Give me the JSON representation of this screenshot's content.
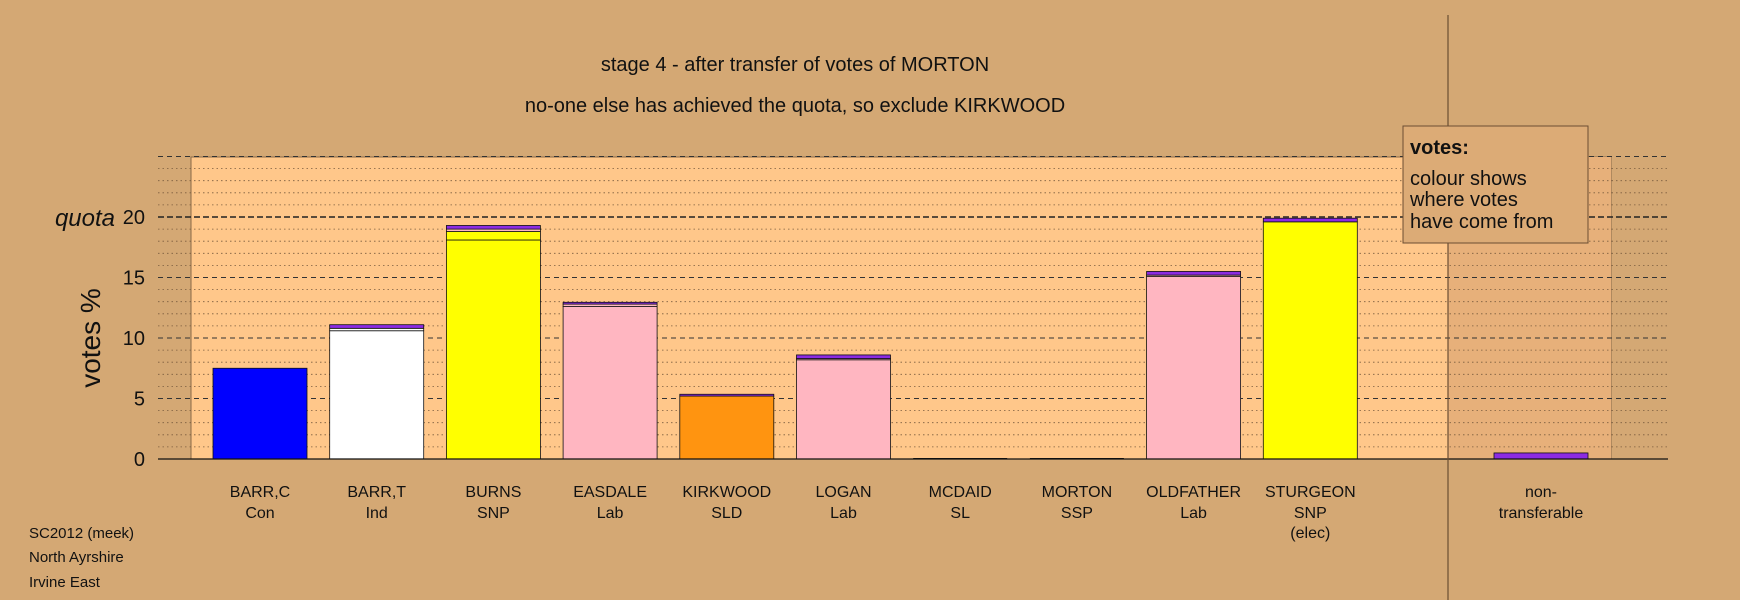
{
  "chart_data": {
    "type": "bar",
    "title": "stage 4 - after transfer of votes of MORTON",
    "subtitle": "no-one else has achieved the quota, so exclude KIRKWOOD",
    "ylabel": "votes %",
    "ylim": [
      0,
      25
    ],
    "yticks": [
      0,
      5,
      10,
      15,
      20
    ],
    "quota": 20,
    "quota_label": "quota",
    "grid": "dashed lines every 5 %, dotted lines every 1 %",
    "candidates": [
      {
        "name": "BARR,C",
        "party": "Con",
        "extra": "",
        "segments": [
          {
            "value": 7.5,
            "color": "#0000ff"
          }
        ]
      },
      {
        "name": "BARR,T",
        "party": "Ind",
        "extra": "",
        "segments": [
          {
            "value": 10.6,
            "color": "#ffffff"
          },
          {
            "value": 0.2,
            "color": "#ffffff"
          },
          {
            "value": 0.3,
            "color": "#8b2be2"
          }
        ]
      },
      {
        "name": "BURNS",
        "party": "SNP",
        "extra": "",
        "segments": [
          {
            "value": 18.1,
            "color": "#ffff00"
          },
          {
            "value": 0.7,
            "color": "#ffff00"
          },
          {
            "value": 0.2,
            "color": "#ffb6c1"
          },
          {
            "value": 0.3,
            "color": "#8b2be2"
          }
        ]
      },
      {
        "name": "EASDALE",
        "party": "Lab",
        "extra": "",
        "segments": [
          {
            "value": 12.6,
            "color": "#ffb6c1"
          },
          {
            "value": 0.2,
            "color": "#ffb6c1"
          },
          {
            "value": 0.15,
            "color": "#8b2be2"
          }
        ]
      },
      {
        "name": "KIRKWOOD",
        "party": "SLD",
        "extra": "",
        "segments": [
          {
            "value": 5.2,
            "color": "#ff9410"
          },
          {
            "value": 0.15,
            "color": "#8b2be2"
          }
        ]
      },
      {
        "name": "LOGAN",
        "party": "Lab",
        "extra": "",
        "segments": [
          {
            "value": 8.2,
            "color": "#ffb6c1"
          },
          {
            "value": 0.1,
            "color": "#ffb6c1"
          },
          {
            "value": 0.3,
            "color": "#8b2be2"
          }
        ]
      },
      {
        "name": "MCDAID",
        "party": "SL",
        "extra": "",
        "segments": []
      },
      {
        "name": "MORTON",
        "party": "SSP",
        "extra": "",
        "segments": []
      },
      {
        "name": "OLDFATHER",
        "party": "Lab",
        "extra": "",
        "segments": [
          {
            "value": 15.1,
            "color": "#ffb6c1"
          },
          {
            "value": 0.1,
            "color": "#ffb6c1"
          },
          {
            "value": 0.3,
            "color": "#8b2be2"
          }
        ]
      },
      {
        "name": "STURGEON",
        "party": "SNP",
        "extra": "(elec)",
        "segments": [
          {
            "value": 19.6,
            "color": "#ffff00"
          },
          {
            "value": 0.3,
            "color": "#8b2be2"
          }
        ]
      }
    ],
    "nontransferable": {
      "label_line1": "non-",
      "label_line2": "transferable",
      "segments": [
        {
          "value": 0.5,
          "color": "#8b2be2"
        }
      ]
    }
  },
  "legend": {
    "title": "votes:",
    "lines": [
      "colour shows",
      "where votes",
      "have come from"
    ]
  },
  "footer": [
    "SC2012 (meek)",
    "North Ayrshire",
    "Irvine East"
  ]
}
